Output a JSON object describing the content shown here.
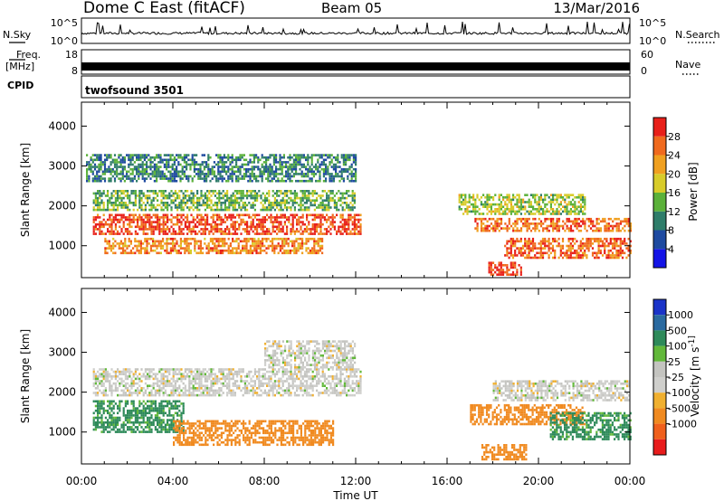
{
  "header": {
    "station": "Dome C East (fitACF)",
    "beam": "Beam 05",
    "date": "13/Mar/2016"
  },
  "strips": {
    "nsky_label": "N.Sky",
    "nsky_ticks": [
      "10^5",
      "10^0"
    ],
    "nsearch_label": "N.Search",
    "nsearch_ticks": [
      "10^5",
      "10^0"
    ],
    "freq_label": "Freq.",
    "freq_unit": "[MHz]",
    "freq_ticks": [
      "18",
      "8"
    ],
    "nave_label": "Nave",
    "nave_ticks": [
      "60",
      "0"
    ],
    "cpid_label": "CPID",
    "cpid_value": "twofsound 3501"
  },
  "colors": {
    "power": [
      "#1414e6",
      "#1e4aa0",
      "#2f7d6a",
      "#5bb13a",
      "#d8cc2a",
      "#f0a020",
      "#f06a1e",
      "#e8201a"
    ],
    "velocity": [
      "#1a33c8",
      "#2a6aa0",
      "#2e8a5a",
      "#62b83a",
      "#c4c4c0",
      "#cfcfcc",
      "#f0b030",
      "#f08a20",
      "#f0601c",
      "#e81c1c"
    ]
  },
  "chart_data": [
    {
      "type": "heatmap",
      "title": "Power",
      "xlabel": "Time UT",
      "ylabel": "Slant Range [km]",
      "x_ticks": [
        "00:00",
        "04:00",
        "08:00",
        "12:00",
        "16:00",
        "20:00",
        "00:00"
      ],
      "xlim_hours": [
        0,
        24
      ],
      "ylim": [
        200,
        4600
      ],
      "y_ticks": [
        1000,
        2000,
        3000,
        4000
      ],
      "colorbar_label": "Power [dB]",
      "colorbar_ticks": [
        "28",
        "24",
        "20",
        "16",
        "12",
        "8",
        "4"
      ],
      "colorbar_range": [
        0,
        32
      ],
      "echo_regions": [
        {
          "x": [
            0.5,
            12.2
          ],
          "y": [
            1300,
            1800
          ],
          "value": 28
        },
        {
          "x": [
            1.0,
            10.5
          ],
          "y": [
            800,
            1200
          ],
          "value": 24
        },
        {
          "x": [
            0.5,
            12.0
          ],
          "y": [
            1900,
            2400
          ],
          "value": 14
        },
        {
          "x": [
            17.2,
            24.0
          ],
          "y": [
            1350,
            1700
          ],
          "value": 26
        },
        {
          "x": [
            18.5,
            24.0
          ],
          "y": [
            700,
            1200
          ],
          "value": 26
        },
        {
          "x": [
            16.5,
            22.0
          ],
          "y": [
            1800,
            2300
          ],
          "value": 16
        },
        {
          "x": [
            17.8,
            19.2
          ],
          "y": [
            300,
            600
          ],
          "value": 30
        },
        {
          "x": [
            0.2,
            12.0
          ],
          "y": [
            2600,
            3300
          ],
          "value": 10
        }
      ]
    },
    {
      "type": "heatmap",
      "title": "Velocity",
      "xlabel": "Time UT",
      "ylabel": "Slant Range [km]",
      "x_ticks": [
        "00:00",
        "04:00",
        "08:00",
        "12:00",
        "16:00",
        "20:00",
        "00:00"
      ],
      "xlim_hours": [
        0,
        24
      ],
      "ylim": [
        200,
        4600
      ],
      "y_ticks": [
        1000,
        2000,
        3000,
        4000
      ],
      "colorbar_label": "Velocity [m s^-1]",
      "colorbar_ticks": [
        "1000",
        "500",
        "100",
        "25",
        "-25",
        "-100",
        "-500",
        "-1000"
      ],
      "echo_regions": [
        {
          "x": [
            0.5,
            12.2
          ],
          "y": [
            1900,
            2600
          ],
          "value": 0
        },
        {
          "x": [
            0.5,
            4.5
          ],
          "y": [
            1000,
            1800
          ],
          "value": 120
        },
        {
          "x": [
            4.0,
            11.0
          ],
          "y": [
            700,
            1300
          ],
          "value": -300
        },
        {
          "x": [
            17.0,
            22.0
          ],
          "y": [
            1200,
            1700
          ],
          "value": -350
        },
        {
          "x": [
            20.5,
            24.0
          ],
          "y": [
            800,
            1500
          ],
          "value": 120
        },
        {
          "x": [
            17.5,
            19.5
          ],
          "y": [
            300,
            700
          ],
          "value": -400
        },
        {
          "x": [
            18.0,
            24.0
          ],
          "y": [
            1800,
            2300
          ],
          "value": 0
        },
        {
          "x": [
            8.0,
            12.0
          ],
          "y": [
            2600,
            3300
          ],
          "value": 0
        }
      ]
    }
  ]
}
